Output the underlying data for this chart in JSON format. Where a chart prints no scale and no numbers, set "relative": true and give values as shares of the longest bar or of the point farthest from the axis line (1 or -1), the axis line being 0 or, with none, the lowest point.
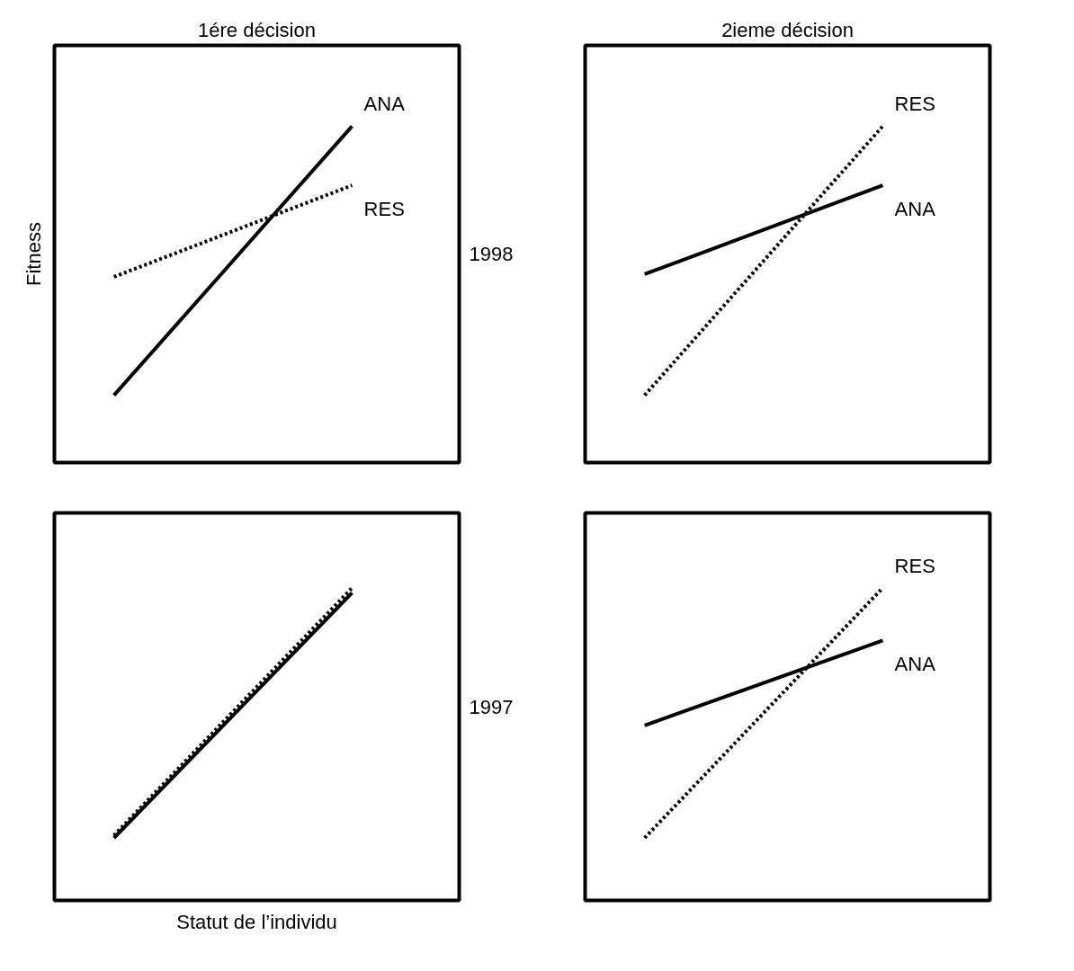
{
  "chart_data": [
    {
      "type": "line",
      "title": "1ére décision",
      "ylabel": "Fitness",
      "y2label": "1998",
      "relative": true,
      "categories": [
        null,
        null
      ],
      "series": [
        {
          "name": "ANA",
          "color": "#000000",
          "line_style": "solid",
          "values": [
            0,
            1.0
          ]
        },
        {
          "name": "RES",
          "color": "#000000",
          "line_style": "dotted",
          "values": [
            0.44,
            0.78
          ]
        }
      ]
    },
    {
      "type": "line",
      "title": "2ieme décision",
      "relative": true,
      "categories": [
        null,
        null
      ],
      "series": [
        {
          "name": "ANA",
          "color": "#000000",
          "line_style": "solid",
          "values": [
            0.45,
            0.78
          ]
        },
        {
          "name": "RES",
          "color": "#000000",
          "line_style": "dotted",
          "values": [
            0,
            1.0
          ]
        }
      ]
    },
    {
      "type": "line",
      "xlabel": "Statut de l’individu",
      "y2label": "1997",
      "relative": true,
      "categories": [
        null,
        null
      ],
      "series": [
        {
          "color": "#000000",
          "line_style": "solid",
          "values": [
            0,
            0.98
          ]
        },
        {
          "color": "#000000",
          "line_style": "dotted",
          "values": [
            0.01,
            1.0
          ]
        }
      ]
    },
    {
      "type": "line",
      "relative": true,
      "categories": [
        null,
        null
      ],
      "series": [
        {
          "name": "ANA",
          "color": "#000000",
          "line_style": "solid",
          "values": [
            0.45,
            0.79
          ]
        },
        {
          "name": "RES",
          "color": "#000000",
          "line_style": "dotted",
          "values": [
            0,
            1.0
          ]
        }
      ]
    }
  ]
}
